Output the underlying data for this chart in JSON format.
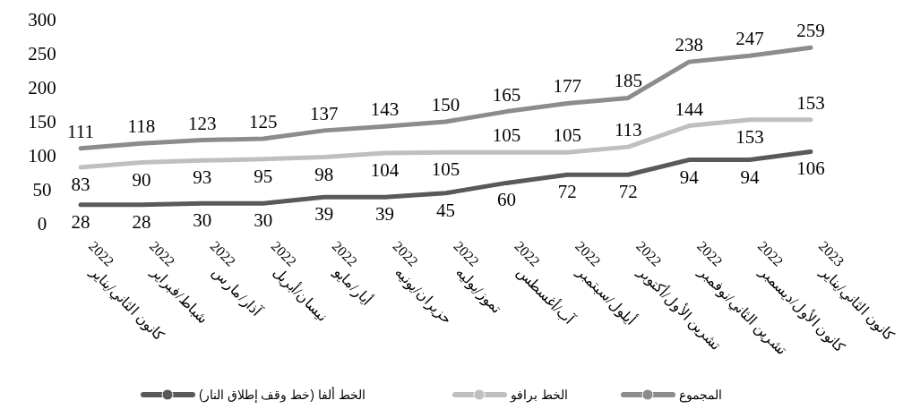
{
  "chart_data": {
    "type": "line",
    "categories": [
      "كانون الثاني/يناير 2022",
      "شباط/فبراير 2022",
      "آذار/مارس 2022",
      "نيسان/أبريل 2022",
      "أيار/مايو 2022",
      "حزيران/يونيه 2022",
      "تموز/يوليه 2022",
      "آب/أغسطس 2022",
      "أيلول/سبتمبر 2022",
      "تشرين الأول/أكتوبر 2022",
      "تشرين الثاني/نوفمبر 2022",
      "كانون الأول/ديسمبر 2022",
      "كانون الثاني/يناير 2023"
    ],
    "series": [
      {
        "name": "الخط ألفا (خط وقف إطلاق النار)",
        "color": "#595959",
        "values": [
          28,
          28,
          30,
          30,
          39,
          39,
          45,
          60,
          72,
          72,
          94,
          94,
          106
        ]
      },
      {
        "name": "الخط برافو",
        "color": "#bfbfbf",
        "values": [
          83,
          90,
          93,
          95,
          98,
          104,
          105,
          105,
          105,
          113,
          144,
          153,
          153
        ]
      },
      {
        "name": "المجموع",
        "color": "#8c8c8c",
        "values": [
          111,
          118,
          123,
          125,
          137,
          143,
          150,
          165,
          177,
          185,
          238,
          247,
          259
        ]
      }
    ],
    "ylim": [
      0,
      300
    ],
    "yticks": [
      0,
      50,
      100,
      150,
      200,
      250,
      300
    ],
    "grid": false,
    "legend": "bottom",
    "data_labels": true
  }
}
